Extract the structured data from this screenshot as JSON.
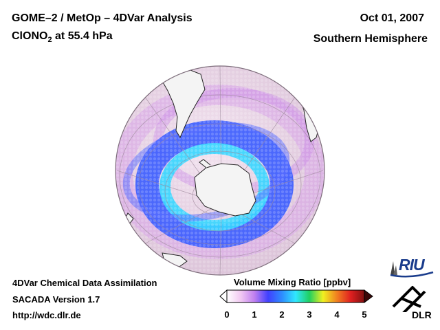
{
  "header": {
    "title_line1": "GOME–2 / MetOp – 4DVar Analysis",
    "species_prefix": "ClONO",
    "species_subscript": "2",
    "species_suffix": " at 55.4 hPa",
    "date": "Oct 01, 2007",
    "region": "Southern Hemisphere"
  },
  "footer": {
    "line1": "4DVar Chemical Data Assimilation",
    "line2": "SACADA Version 1.7",
    "line3": "http://wdc.dlr.de"
  },
  "colorbar": {
    "label": "Volume Mixing Ratio [ppbv]",
    "ticks": [
      "0",
      "1",
      "2",
      "3",
      "4",
      "5"
    ],
    "min": 0,
    "max": 5,
    "colors": [
      "#ffffff",
      "#f2c9f2",
      "#c080f0",
      "#4040ff",
      "#2e8cff",
      "#30e8ff",
      "#20d060",
      "#f0f020",
      "#f08020",
      "#e02020",
      "#801010"
    ]
  },
  "logos": {
    "riu": "RIU",
    "dlr": "DLR"
  },
  "colors": {
    "disk": "#ecd9ea",
    "ring_outer": "#3355ff",
    "ring_inner": "#2ec4ff",
    "haze": "#d48fe6",
    "land": "#f2f2f2"
  }
}
